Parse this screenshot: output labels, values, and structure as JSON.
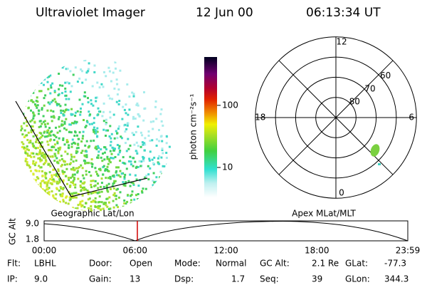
{
  "header": {
    "instrument": "Ultraviolet Imager",
    "date": "12 Jun 00",
    "time": "06:13:34 UT"
  },
  "colorbar": {
    "label": "photon cm⁻²s⁻¹",
    "log": true,
    "range": [
      3.3,
      600
    ],
    "ticks": [
      10,
      100
    ]
  },
  "polar": {
    "lat_range": [
      50,
      90
    ],
    "rings": [
      60,
      70,
      80
    ],
    "hours": [
      12,
      18,
      6,
      0
    ]
  },
  "orbit": {
    "y_label": "GC Alt",
    "y_ticks": [
      "9.0",
      "1.8"
    ],
    "left_title": "Geographic Lat/Lon",
    "right_title": "Apex MLat/MLT",
    "x_ticks": [
      "00:00",
      "06:00",
      "12:00",
      "18:00",
      "23:59"
    ]
  },
  "status": {
    "rows": [
      [
        {
          "label": "Flt:",
          "value": "LBHL"
        },
        {
          "label": "Door:",
          "value": "Open"
        },
        {
          "label": "Mode:",
          "value": "Normal"
        },
        {
          "label": "GC Alt:",
          "value": "2.1 Re"
        },
        {
          "label": "GLat:",
          "value": "-77.3"
        }
      ],
      [
        {
          "label": "IP:",
          "value": "9.0"
        },
        {
          "label": "Gain:",
          "value": "13"
        },
        {
          "label": "Dsp:",
          "value": "1.7"
        },
        {
          "label": "Seq:",
          "value": "39"
        },
        {
          "label": "GLon:",
          "value": "344.3"
        }
      ]
    ]
  }
}
